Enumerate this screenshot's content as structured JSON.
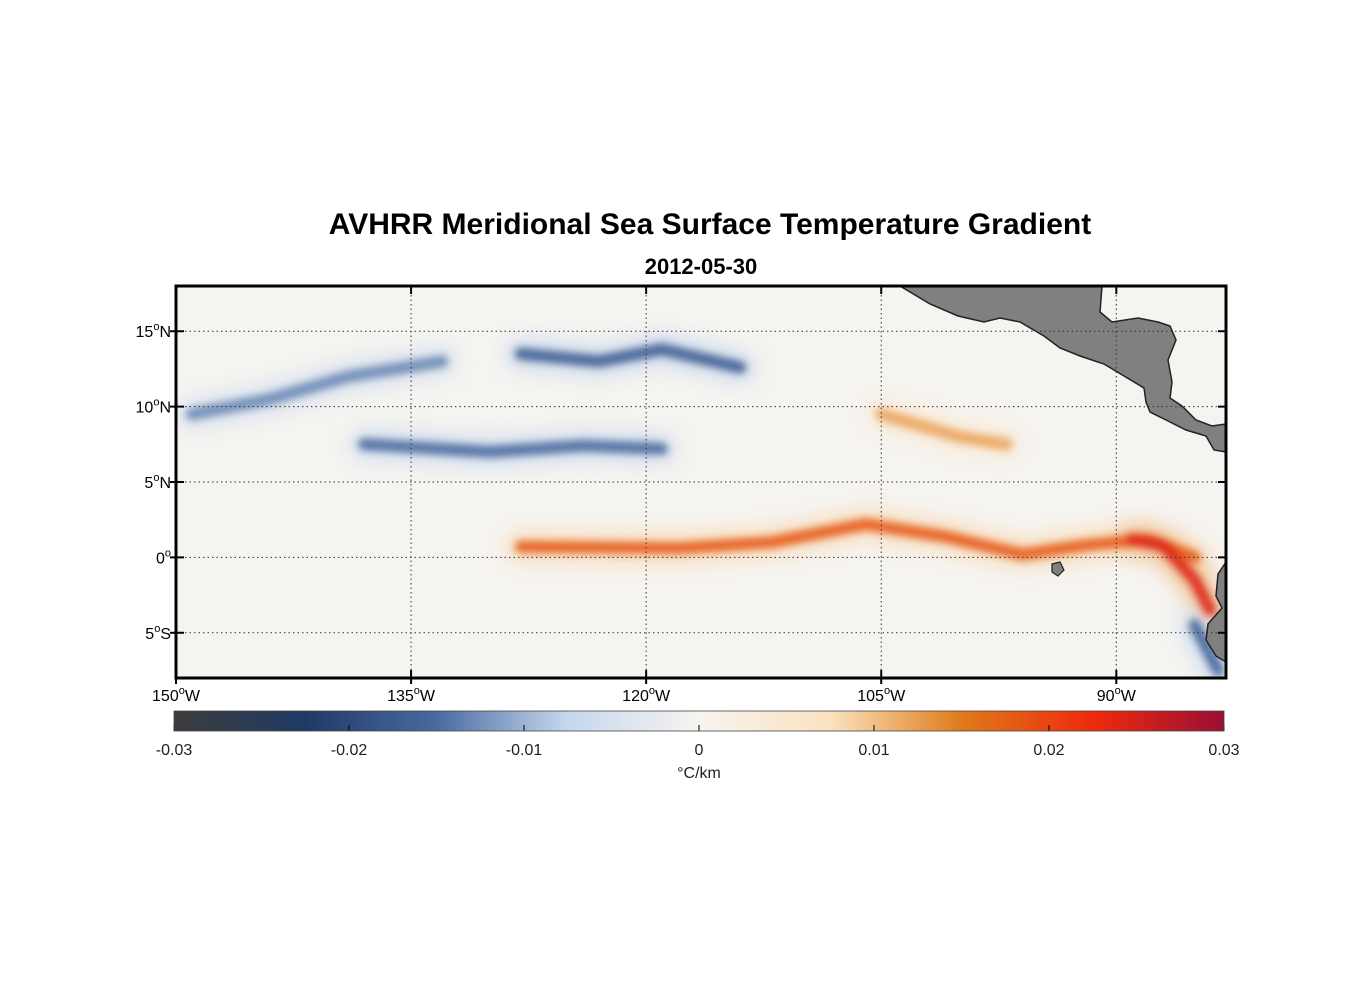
{
  "chart_data": {
    "type": "heatmap",
    "title": "AVHRR Meridional Sea Surface Temperature Gradient",
    "subtitle": "2012-05-30",
    "variable": "Meridional SST gradient",
    "units": "°C/km",
    "xlim": [
      -150,
      -83
    ],
    "ylim": [
      -8,
      18
    ],
    "x_ticks": [
      {
        "value": -150,
        "deg": "150",
        "hemi": "W"
      },
      {
        "value": -135,
        "deg": "135",
        "hemi": "W"
      },
      {
        "value": -120,
        "deg": "120",
        "hemi": "W"
      },
      {
        "value": -105,
        "deg": "105",
        "hemi": "W"
      },
      {
        "value": -90,
        "deg": "90",
        "hemi": "W"
      }
    ],
    "y_ticks": [
      {
        "value": 15,
        "deg": "15",
        "hemi": "N"
      },
      {
        "value": 10,
        "deg": "10",
        "hemi": "N"
      },
      {
        "value": 5,
        "deg": "5",
        "hemi": "N"
      },
      {
        "value": 0,
        "deg": "0",
        "hemi": ""
      },
      {
        "value": -5,
        "deg": "5",
        "hemi": "S"
      }
    ],
    "grid": true,
    "colorbar": {
      "min": -0.03,
      "max": 0.03,
      "ticks": [
        -0.03,
        -0.02,
        -0.01,
        0,
        0.01,
        0.02,
        0.03
      ],
      "tick_labels": [
        "-0.03",
        "-0.02",
        "-0.01",
        "0",
        "0.01",
        "0.02",
        "0.03"
      ],
      "label": "°C/km",
      "colors": [
        "#3c3c3c",
        "#1f3a66",
        "#4a6aa0",
        "#c6d8ee",
        "#f7f4f0",
        "#fbe2bf",
        "#e07a1a",
        "#ee2a0c",
        "#9a1036"
      ]
    },
    "land_color": "#808080",
    "features": [
      {
        "name": "equatorial-front",
        "lon": [
          -128,
          -118,
          -112,
          -106,
          -101,
          -96,
          -92,
          -88,
          -85
        ],
        "lat": [
          0.7,
          0.6,
          1.0,
          2.2,
          1.4,
          0.2,
          0.8,
          1.2,
          0.0
        ],
        "value": 0.018
      },
      {
        "name": "cold-tongue-front-east",
        "lon": [
          -89,
          -87,
          -85,
          -84
        ],
        "lat": [
          1.2,
          0.8,
          -1.5,
          -3.5
        ],
        "value": 0.024
      },
      {
        "name": "north-band-negative-1",
        "lon": [
          -138,
          -130,
          -124,
          -119
        ],
        "lat": [
          7.5,
          7.0,
          7.4,
          7.2
        ],
        "value": -0.015
      },
      {
        "name": "north-band-negative-2",
        "lon": [
          -128,
          -123,
          -119,
          -114
        ],
        "lat": [
          13.5,
          13.0,
          13.8,
          12.6
        ],
        "value": -0.017
      },
      {
        "name": "north-band-negative-3",
        "lon": [
          -149,
          -144,
          -139,
          -133
        ],
        "lat": [
          9.5,
          10.5,
          12.0,
          13.0
        ],
        "value": -0.013
      },
      {
        "name": "subtropical-positive",
        "lon": [
          -105,
          -100,
          -97
        ],
        "lat": [
          9.5,
          8.0,
          7.5
        ],
        "value": 0.012
      },
      {
        "name": "southern-negative",
        "lon": [
          -85,
          -84,
          -83.5
        ],
        "lat": [
          -4.5,
          -6.5,
          -7.5
        ],
        "value": -0.016
      }
    ]
  }
}
